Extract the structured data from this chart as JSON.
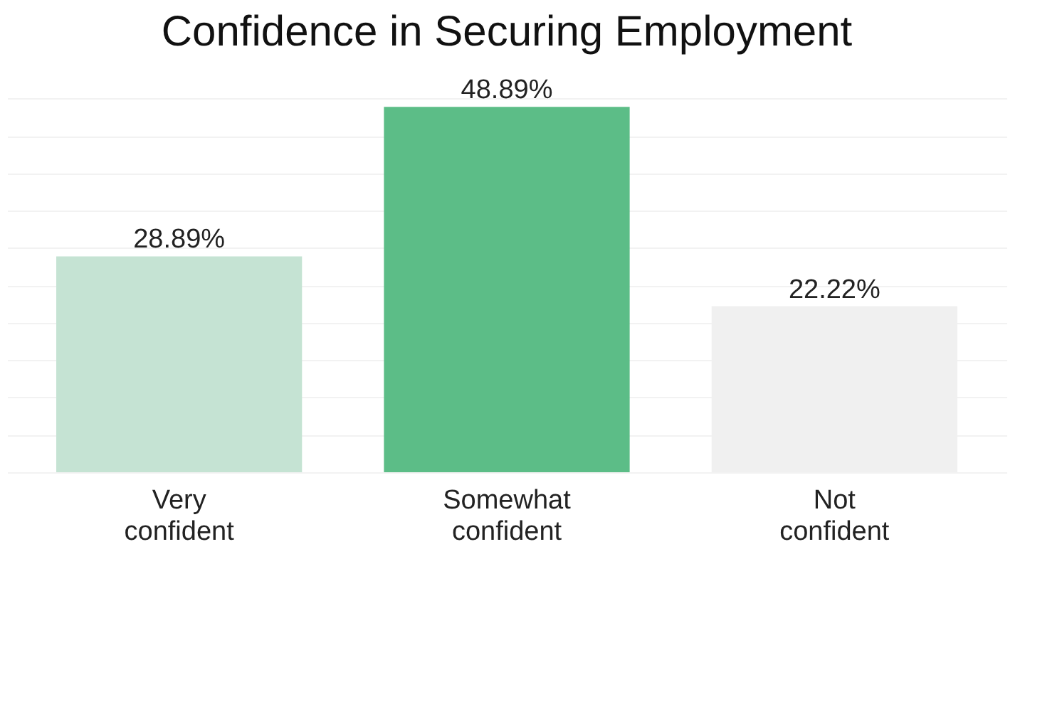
{
  "chart_data": {
    "type": "bar",
    "title": "Confidence in Securing Employment",
    "categories": [
      "Very confident",
      "Somewhat confident",
      "Not confident"
    ],
    "values": [
      28.89,
      48.89,
      22.22
    ],
    "colors": [
      "#c5e3d3",
      "#5cbd87",
      "#f0f0f0"
    ],
    "value_labels": [
      "28.89%",
      "48.89%",
      "22.22%"
    ],
    "grid": "y",
    "tick_labels": "x",
    "legend": false
  }
}
